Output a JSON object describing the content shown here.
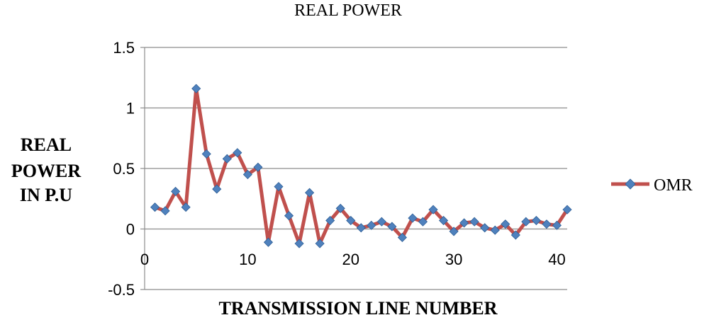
{
  "chart_data": {
    "type": "line",
    "title": "REAL POWER",
    "xlabel": "TRANSMISSION LINE NUMBER",
    "ylabel_lines": [
      "REAL",
      "POWER",
      "IN P.U"
    ],
    "xlim": [
      0,
      41
    ],
    "ylim": [
      -0.5,
      1.5
    ],
    "x_ticks": [
      0,
      10,
      20,
      30,
      40
    ],
    "y_ticks": [
      -0.5,
      0,
      0.5,
      1,
      1.5
    ],
    "y_tick_labels": [
      "-0.5",
      "0",
      "0.5",
      "1",
      "1.5"
    ],
    "grid": "horizontal",
    "legend_position": "right",
    "series": [
      {
        "name": "OMR",
        "line_color": "#c0504d",
        "marker_color": "#4f81bd",
        "x": [
          1,
          2,
          3,
          4,
          5,
          6,
          7,
          8,
          9,
          10,
          11,
          12,
          13,
          14,
          15,
          16,
          17,
          18,
          19,
          20,
          21,
          22,
          23,
          24,
          25,
          26,
          27,
          28,
          29,
          30,
          31,
          32,
          33,
          34,
          35,
          36,
          37,
          38,
          39,
          40,
          41
        ],
        "values": [
          0.18,
          0.15,
          0.31,
          0.18,
          1.16,
          0.62,
          0.33,
          0.58,
          0.63,
          0.45,
          0.51,
          -0.11,
          0.35,
          0.11,
          -0.12,
          0.3,
          -0.12,
          0.07,
          0.17,
          0.07,
          0.01,
          0.03,
          0.06,
          0.02,
          -0.07,
          0.09,
          0.06,
          0.16,
          0.07,
          -0.02,
          0.05,
          0.06,
          0.01,
          -0.01,
          0.04,
          -0.05,
          0.06,
          0.07,
          0.04,
          0.03,
          0.16
        ]
      }
    ]
  }
}
